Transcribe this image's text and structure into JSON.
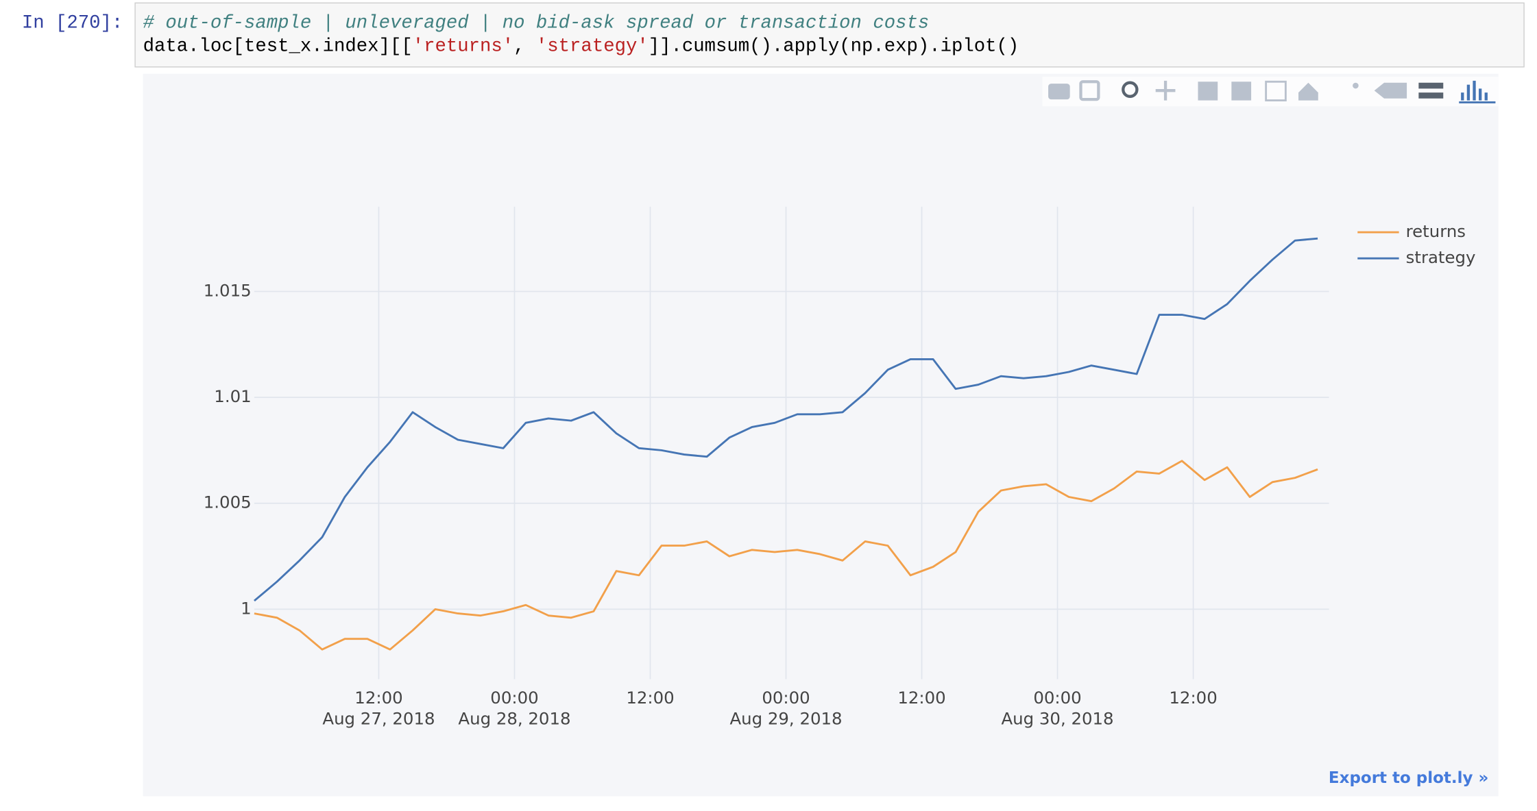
{
  "cell": {
    "prompt": "In [270]:",
    "comment": "# out-of-sample | unleveraged | no bid-ask spread or transaction costs",
    "code_tokens": [
      "data.loc[test_x.index][[",
      "'returns'",
      ", ",
      "'strategy'",
      "]].cumsum().apply(np.exp).iplot()"
    ],
    "export_link": "Export to plot.ly »"
  },
  "chart_data": {
    "type": "line",
    "x": [
      "2018-08-27 01:00",
      "2018-08-27 03:00",
      "2018-08-27 05:00",
      "2018-08-27 07:00",
      "2018-08-27 09:00",
      "2018-08-27 11:00",
      "2018-08-27 13:00",
      "2018-08-27 15:00",
      "2018-08-27 17:00",
      "2018-08-27 19:00",
      "2018-08-27 21:00",
      "2018-08-27 23:00",
      "2018-08-28 01:00",
      "2018-08-28 03:00",
      "2018-08-28 05:00",
      "2018-08-28 07:00",
      "2018-08-28 09:00",
      "2018-08-28 11:00",
      "2018-08-28 13:00",
      "2018-08-28 15:00",
      "2018-08-28 17:00",
      "2018-08-28 19:00",
      "2018-08-28 21:00",
      "2018-08-28 23:00",
      "2018-08-29 01:00",
      "2018-08-29 03:00",
      "2018-08-29 05:00",
      "2018-08-29 07:00",
      "2018-08-29 09:00",
      "2018-08-29 11:00",
      "2018-08-29 13:00",
      "2018-08-29 15:00",
      "2018-08-29 17:00",
      "2018-08-29 19:00",
      "2018-08-29 21:00",
      "2018-08-29 23:00",
      "2018-08-30 01:00",
      "2018-08-30 03:00",
      "2018-08-30 05:00",
      "2018-08-30 07:00",
      "2018-08-30 09:00",
      "2018-08-30 11:00",
      "2018-08-30 13:00",
      "2018-08-30 15:00",
      "2018-08-30 17:00",
      "2018-08-30 19:00",
      "2018-08-30 21:00",
      "2018-08-30 23:00"
    ],
    "series": [
      {
        "name": "returns",
        "color": "#f2a04a",
        "values": [
          0.9998,
          0.9996,
          0.999,
          0.9981,
          0.9986,
          0.9986,
          0.9981,
          0.999,
          1.0,
          0.9998,
          0.9997,
          0.9999,
          1.0002,
          0.9997,
          0.9996,
          0.9999,
          1.0018,
          1.0016,
          1.003,
          1.003,
          1.0032,
          1.0025,
          1.0028,
          1.0027,
          1.0028,
          1.0026,
          1.0023,
          1.0032,
          1.003,
          1.0016,
          1.002,
          1.0027,
          1.0046,
          1.0056,
          1.0058,
          1.0059,
          1.0053,
          1.0051,
          1.0057,
          1.0065,
          1.0064,
          1.007,
          1.0061,
          1.0067,
          1.0053,
          1.006,
          1.0062,
          1.0066
        ]
      },
      {
        "name": "strategy",
        "color": "#4575b4",
        "values": [
          1.0004,
          1.0013,
          1.0023,
          1.0034,
          1.0053,
          1.0067,
          1.0079,
          1.0093,
          1.0086,
          1.008,
          1.0078,
          1.0076,
          1.0088,
          1.009,
          1.0089,
          1.0093,
          1.0083,
          1.0076,
          1.0075,
          1.0073,
          1.0072,
          1.0081,
          1.0086,
          1.0088,
          1.0092,
          1.0092,
          1.0093,
          1.0102,
          1.0113,
          1.0118,
          1.0118,
          1.0104,
          1.0106,
          1.011,
          1.0109,
          1.011,
          1.0112,
          1.0115,
          1.0113,
          1.0111,
          1.0139,
          1.0139,
          1.0137,
          1.0144,
          1.0155,
          1.0165,
          1.0174,
          1.0175
        ]
      }
    ],
    "xlim": [
      "2018-08-27 01:00",
      "2018-08-31 00:00"
    ],
    "xticks": [
      {
        "value": "2018-08-27 12:00",
        "label": "12:00",
        "date_label": "Aug 27, 2018"
      },
      {
        "value": "2018-08-28 00:00",
        "label": "00:00",
        "date_label": "Aug 28, 2018"
      },
      {
        "value": "2018-08-28 12:00",
        "label": "12:00"
      },
      {
        "value": "2018-08-29 00:00",
        "label": "00:00",
        "date_label": "Aug 29, 2018"
      },
      {
        "value": "2018-08-29 12:00",
        "label": "12:00"
      },
      {
        "value": "2018-08-30 00:00",
        "label": "00:00",
        "date_label": "Aug 30, 2018"
      },
      {
        "value": "2018-08-30 12:00",
        "label": "12:00"
      }
    ],
    "ylim": [
      0.9967,
      1.019
    ],
    "yticks": [
      1,
      1.005,
      1.01,
      1.015
    ],
    "grid": true,
    "legend": "top-right"
  }
}
